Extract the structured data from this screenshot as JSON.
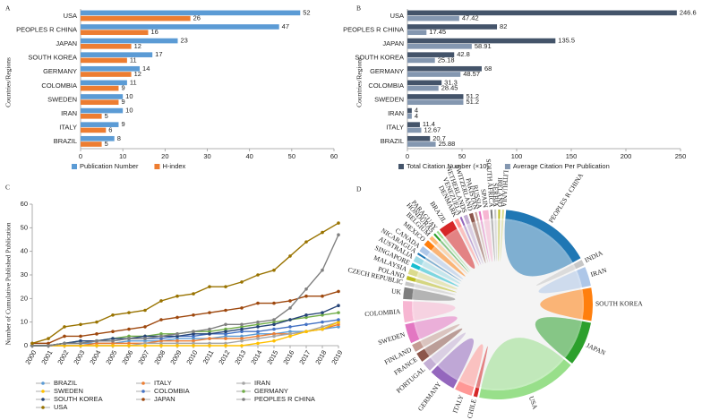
{
  "chart_data": [
    {
      "type": "bar",
      "orientation": "horizontal",
      "panel": "A",
      "y_label": "Countries/Regions",
      "categories": [
        "USA",
        "PEOPLES R CHINA",
        "JAPAN",
        "SOUTH KOREA",
        "GERMANY",
        "COLOMBIA",
        "SWEDEN",
        "IRAN",
        "ITALY",
        "BRAZIL"
      ],
      "series": [
        {
          "name": "Publication Number",
          "color": "#5b9bd5",
          "values": [
            52,
            47,
            23,
            17,
            14,
            11,
            10,
            10,
            9,
            8
          ]
        },
        {
          "name": "H-index",
          "color": "#ed7d31",
          "values": [
            26,
            16,
            12,
            11,
            12,
            9,
            9,
            5,
            6,
            5
          ]
        }
      ],
      "xlim": [
        0,
        60
      ],
      "xticks": [
        0,
        10,
        20,
        30,
        40,
        50,
        60
      ]
    },
    {
      "type": "bar",
      "orientation": "horizontal",
      "panel": "B",
      "y_label": "Countries/Regions",
      "categories": [
        "USA",
        "PEOPLES R CHINA",
        "JAPAN",
        "SOUTH KOREA",
        "GERMANY",
        "COLOMBIA",
        "SWEDEN",
        "IRAN",
        "ITALY",
        "BRAZIL"
      ],
      "series": [
        {
          "name": "Total Citation Number (×10)",
          "color": "#44546a",
          "values": [
            246.6,
            82,
            135.5,
            42.8,
            68,
            31.3,
            51.2,
            4,
            11.4,
            20.7
          ]
        },
        {
          "name": "Average Citation Per Publication",
          "color": "#8497b0",
          "values": [
            47.42,
            17.45,
            58.91,
            25.18,
            48.57,
            28.45,
            51.2,
            4,
            12.67,
            25.88
          ]
        }
      ],
      "xlim": [
        0,
        250
      ],
      "xticks": [
        0,
        50,
        100,
        150,
        200,
        250
      ]
    },
    {
      "type": "line",
      "panel": "C",
      "y_label": "Number of Cumulative Published Publication",
      "x": [
        2000,
        2001,
        2002,
        2003,
        2004,
        2005,
        2006,
        2007,
        2008,
        2009,
        2010,
        2011,
        2012,
        2013,
        2014,
        2015,
        2016,
        2017,
        2018,
        2019
      ],
      "xlim": [
        2000,
        2019
      ],
      "xticks": [
        2000,
        2001,
        2002,
        2003,
        2004,
        2005,
        2006,
        2007,
        2008,
        2009,
        2010,
        2011,
        2012,
        2013,
        2014,
        2015,
        2016,
        2017,
        2018,
        2019
      ],
      "ylim": [
        0,
        60
      ],
      "yticks": [
        0,
        10,
        20,
        30,
        40,
        50,
        60
      ],
      "series": [
        {
          "name": "BRAZIL",
          "color": "#5b9bd5",
          "values": [
            0,
            0,
            1,
            1,
            1,
            1,
            2,
            2,
            2,
            3,
            3,
            3,
            4,
            4,
            5,
            5,
            6,
            6,
            7,
            8
          ]
        },
        {
          "name": "ITALY",
          "color": "#ed7d31",
          "values": [
            0,
            0,
            0,
            0,
            1,
            1,
            1,
            1,
            2,
            2,
            2,
            3,
            3,
            3,
            4,
            5,
            5,
            6,
            7,
            9
          ]
        },
        {
          "name": "IRAN",
          "color": "#a5a5a5",
          "values": [
            0,
            0,
            0,
            0,
            0,
            0,
            0,
            1,
            1,
            1,
            1,
            1,
            1,
            2,
            3,
            4,
            5,
            6,
            8,
            10
          ]
        },
        {
          "name": "SWEDEN",
          "color": "#ffc000",
          "values": [
            0,
            0,
            0,
            0,
            0,
            0,
            0,
            0,
            0,
            0,
            0,
            0,
            0,
            0,
            1,
            2,
            4,
            6,
            7,
            10
          ]
        },
        {
          "name": "COLOMBIA",
          "color": "#4472c4",
          "values": [
            0,
            0,
            1,
            1,
            2,
            2,
            3,
            3,
            3,
            4,
            4,
            5,
            5,
            6,
            6,
            7,
            8,
            9,
            10,
            11
          ]
        },
        {
          "name": "GERMANY",
          "color": "#70ad47",
          "values": [
            0,
            0,
            1,
            2,
            2,
            3,
            4,
            4,
            5,
            5,
            6,
            6,
            7,
            8,
            9,
            10,
            11,
            12,
            13,
            14
          ]
        },
        {
          "name": "SOUTH KOREA",
          "color": "#264478",
          "values": [
            0,
            0,
            1,
            2,
            2,
            3,
            3,
            4,
            4,
            4,
            5,
            5,
            6,
            7,
            8,
            9,
            11,
            13,
            14,
            17
          ]
        },
        {
          "name": "JAPAN",
          "color": "#9e480e",
          "values": [
            1,
            1,
            4,
            4,
            5,
            6,
            7,
            8,
            11,
            12,
            13,
            14,
            15,
            16,
            18,
            18,
            19,
            21,
            21,
            23
          ]
        },
        {
          "name": "PEOPLES R CHINA",
          "color": "#808080",
          "values": [
            0,
            0,
            1,
            1,
            2,
            2,
            3,
            3,
            4,
            5,
            6,
            7,
            9,
            9,
            10,
            11,
            16,
            24,
            32,
            47
          ]
        },
        {
          "name": "USA",
          "color": "#997300",
          "values": [
            1,
            3,
            8,
            9,
            10,
            13,
            14,
            15,
            19,
            21,
            22,
            25,
            25,
            27,
            30,
            32,
            38,
            44,
            48,
            52
          ]
        }
      ]
    },
    {
      "type": "chord",
      "panel": "D",
      "labels": [
        "PEOPLES R CHINA",
        "INDIA",
        "IRAN",
        "SOUTH KOREA",
        "JAPAN",
        "USA",
        "CHILE",
        "ITALY",
        "GERMANY",
        "PORTUGAL",
        "FRANCE",
        "FINLAND",
        "SWEDEN",
        "COLOMBIA",
        "UK",
        "CZECH REPUBLIC",
        "POLAND",
        "MALAYSIA",
        "SINGAPORE",
        "AUSTRALIA",
        "NICARAGUA",
        "CANADA",
        "MEXICO",
        "BELGIUM",
        "HONDURAS",
        "PARAGUAY",
        "BRAZIL",
        "DENMARK",
        "VENEZUELA",
        "NETHERLANDS",
        "SWITZERLAND",
        "PAKISTAN",
        "RUSSIA",
        "SPAIN",
        "SOUTH AFRICA",
        "SERBIA",
        "IRELAND",
        "LITHUANIA"
      ],
      "values": [
        47,
        3,
        10,
        17,
        23,
        52,
        2,
        9,
        14,
        5,
        5,
        4,
        10,
        11,
        6,
        2,
        2,
        3,
        2,
        3,
        1,
        3,
        3,
        2,
        1,
        1,
        8,
        2,
        1,
        2,
        2,
        1,
        1,
        3,
        1,
        1,
        1,
        1
      ],
      "colors": [
        "#1f77b4",
        "#c7c7c7",
        "#aec7e8",
        "#ff7f0e",
        "#2ca02c",
        "#98df8a",
        "#d62728",
        "#ff9896",
        "#9467bd",
        "#c5b0d5",
        "#8c564b",
        "#c49c94",
        "#e377c2",
        "#f7b6d2",
        "#7f7f7f",
        "#c7c7c7",
        "#bcbd22",
        "#dbdb8d",
        "#17becf",
        "#9edae5",
        "#1f77b4",
        "#aec7e8",
        "#ff7f0e",
        "#ffbb78",
        "#2ca02c",
        "#98df8a",
        "#d62728",
        "#ff9896",
        "#9467bd",
        "#c5b0d5",
        "#8c564b",
        "#c49c94",
        "#e377c2",
        "#f7b6d2",
        "#7f7f7f",
        "#c7c7c7",
        "#bcbd22",
        "#dbdb8d"
      ]
    }
  ]
}
